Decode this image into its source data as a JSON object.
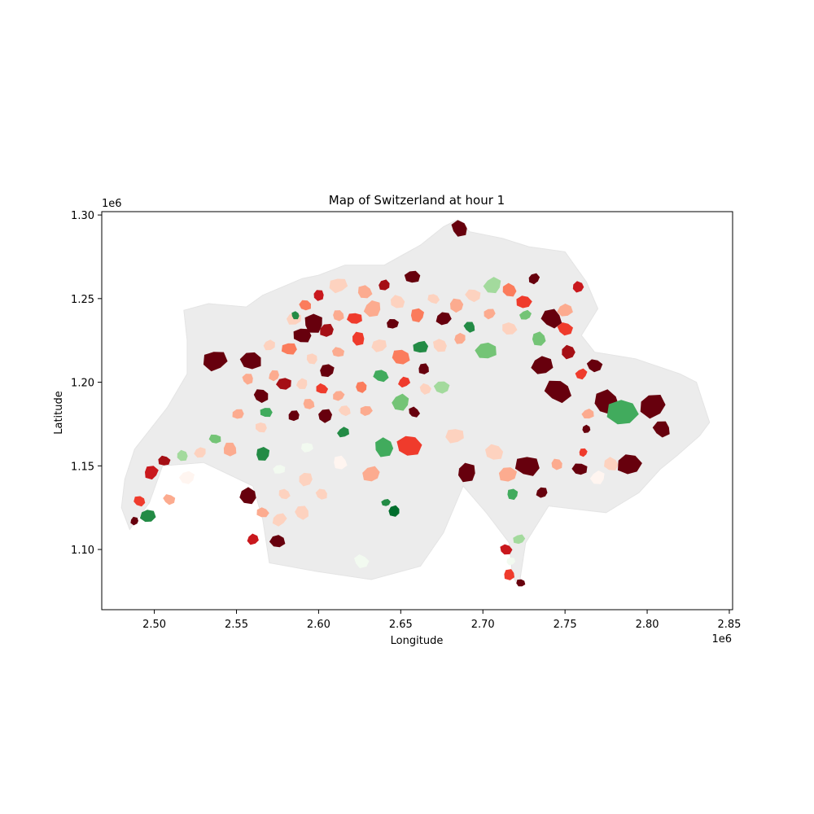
{
  "chart_data": {
    "type": "map",
    "title": "Map of Switzerland at hour 1",
    "xlabel": "Longitude",
    "ylabel": "Latitude",
    "x_offset_label": "1e6",
    "y_offset_label": "1e6",
    "xlim": [
      2.468,
      2.852
    ],
    "ylim": [
      1.064,
      1.302
    ],
    "x_ticks": [
      {
        "value": 2.5,
        "label": "2.50"
      },
      {
        "value": 2.55,
        "label": "2.55"
      },
      {
        "value": 2.6,
        "label": "2.60"
      },
      {
        "value": 2.65,
        "label": "2.65"
      },
      {
        "value": 2.7,
        "label": "2.70"
      },
      {
        "value": 2.75,
        "label": "2.75"
      },
      {
        "value": 2.8,
        "label": "2.80"
      },
      {
        "value": 2.85,
        "label": "2.85"
      }
    ],
    "y_ticks": [
      {
        "value": 1.1,
        "label": "1.10"
      },
      {
        "value": 1.15,
        "label": "1.15"
      },
      {
        "value": 1.2,
        "label": "1.20"
      },
      {
        "value": 1.25,
        "label": "1.25"
      },
      {
        "value": 1.3,
        "label": "1.30"
      }
    ],
    "grid": false,
    "colors": {
      "no_data": "#ececec",
      "red_scale": [
        "#fff5f0",
        "#fdd2bf",
        "#fcab8f",
        "#fb7c5c",
        "#ef3b2c",
        "#c9181d",
        "#a50f15",
        "#67000d"
      ],
      "green_scale": [
        "#f2faf0",
        "#a3da9d",
        "#74c476",
        "#41ab5d",
        "#238b45",
        "#006d2c"
      ]
    },
    "outline": [
      [
        2.485,
        1.112
      ],
      [
        2.497,
        1.128
      ],
      [
        2.505,
        1.15
      ],
      [
        2.53,
        1.152
      ],
      [
        2.56,
        1.138
      ],
      [
        2.566,
        1.118
      ],
      [
        2.57,
        1.092
      ],
      [
        2.598,
        1.087
      ],
      [
        2.632,
        1.082
      ],
      [
        2.662,
        1.09
      ],
      [
        2.676,
        1.11
      ],
      [
        2.688,
        1.138
      ],
      [
        2.702,
        1.122
      ],
      [
        2.716,
        1.104
      ],
      [
        2.718,
        1.084
      ],
      [
        2.722,
        1.078
      ],
      [
        2.726,
        1.104
      ],
      [
        2.74,
        1.126
      ],
      [
        2.775,
        1.122
      ],
      [
        2.795,
        1.134
      ],
      [
        2.808,
        1.148
      ],
      [
        2.818,
        1.156
      ],
      [
        2.832,
        1.168
      ],
      [
        2.838,
        1.176
      ],
      [
        2.83,
        1.2
      ],
      [
        2.82,
        1.205
      ],
      [
        2.793,
        1.214
      ],
      [
        2.768,
        1.218
      ],
      [
        2.76,
        1.228
      ],
      [
        2.77,
        1.244
      ],
      [
        2.763,
        1.26
      ],
      [
        2.75,
        1.278
      ],
      [
        2.728,
        1.281
      ],
      [
        2.712,
        1.286
      ],
      [
        2.692,
        1.29
      ],
      [
        2.684,
        1.297
      ],
      [
        2.676,
        1.293
      ],
      [
        2.662,
        1.282
      ],
      [
        2.64,
        1.27
      ],
      [
        2.616,
        1.27
      ],
      [
        2.6,
        1.264
      ],
      [
        2.59,
        1.262
      ],
      [
        2.566,
        1.252
      ],
      [
        2.556,
        1.245
      ],
      [
        2.533,
        1.247
      ],
      [
        2.518,
        1.243
      ],
      [
        2.52,
        1.225
      ],
      [
        2.52,
        1.205
      ],
      [
        2.508,
        1.185
      ],
      [
        2.488,
        1.16
      ],
      [
        2.482,
        1.142
      ],
      [
        2.48,
        1.125
      ]
    ],
    "regions": [
      {
        "x": 2.686,
        "y": 1.292,
        "r": 0.006,
        "value": 8
      },
      {
        "x": 2.657,
        "y": 1.263,
        "r": 0.005,
        "value": 8
      },
      {
        "x": 2.64,
        "y": 1.258,
        "r": 0.004,
        "value": 7
      },
      {
        "x": 2.628,
        "y": 1.254,
        "r": 0.005,
        "value": 3
      },
      {
        "x": 2.612,
        "y": 1.258,
        "r": 0.006,
        "value": 2
      },
      {
        "x": 2.6,
        "y": 1.252,
        "r": 0.004,
        "value": 6
      },
      {
        "x": 2.592,
        "y": 1.246,
        "r": 0.004,
        "value": 4
      },
      {
        "x": 2.585,
        "y": 1.238,
        "r": 0.005,
        "value": 2
      },
      {
        "x": 2.597,
        "y": 1.235,
        "r": 0.007,
        "value": 8
      },
      {
        "x": 2.59,
        "y": 1.228,
        "r": 0.006,
        "value": 8
      },
      {
        "x": 2.605,
        "y": 1.231,
        "r": 0.005,
        "value": 7
      },
      {
        "x": 2.612,
        "y": 1.24,
        "r": 0.004,
        "value": 3
      },
      {
        "x": 2.622,
        "y": 1.238,
        "r": 0.005,
        "value": 5
      },
      {
        "x": 2.633,
        "y": 1.244,
        "r": 0.006,
        "value": 3
      },
      {
        "x": 2.648,
        "y": 1.248,
        "r": 0.005,
        "value": 2
      },
      {
        "x": 2.645,
        "y": 1.235,
        "r": 0.004,
        "value": 8
      },
      {
        "x": 2.66,
        "y": 1.24,
        "r": 0.005,
        "value": 4
      },
      {
        "x": 2.67,
        "y": 1.25,
        "r": 0.004,
        "value": 2
      },
      {
        "x": 2.676,
        "y": 1.238,
        "r": 0.005,
        "value": 8
      },
      {
        "x": 2.684,
        "y": 1.246,
        "r": 0.005,
        "value": 3
      },
      {
        "x": 2.694,
        "y": 1.252,
        "r": 0.005,
        "value": 2
      },
      {
        "x": 2.706,
        "y": 1.258,
        "r": 0.006,
        "value": -2
      },
      {
        "x": 2.716,
        "y": 1.255,
        "r": 0.005,
        "value": 4
      },
      {
        "x": 2.725,
        "y": 1.248,
        "r": 0.005,
        "value": 5
      },
      {
        "x": 2.731,
        "y": 1.262,
        "r": 0.004,
        "value": 8
      },
      {
        "x": 2.742,
        "y": 1.238,
        "r": 0.007,
        "value": 8
      },
      {
        "x": 2.75,
        "y": 1.243,
        "r": 0.005,
        "value": 3
      },
      {
        "x": 2.758,
        "y": 1.257,
        "r": 0.004,
        "value": 6
      },
      {
        "x": 2.75,
        "y": 1.232,
        "r": 0.005,
        "value": 5
      },
      {
        "x": 2.726,
        "y": 1.24,
        "r": 0.004,
        "value": -3
      },
      {
        "x": 2.734,
        "y": 1.226,
        "r": 0.005,
        "value": -3
      },
      {
        "x": 2.716,
        "y": 1.232,
        "r": 0.005,
        "value": 2
      },
      {
        "x": 2.704,
        "y": 1.241,
        "r": 0.004,
        "value": 3
      },
      {
        "x": 2.692,
        "y": 1.233,
        "r": 0.004,
        "value": -5
      },
      {
        "x": 2.702,
        "y": 1.219,
        "r": 0.007,
        "value": -3
      },
      {
        "x": 2.686,
        "y": 1.226,
        "r": 0.004,
        "value": 3
      },
      {
        "x": 2.674,
        "y": 1.222,
        "r": 0.005,
        "value": 2
      },
      {
        "x": 2.662,
        "y": 1.221,
        "r": 0.005,
        "value": -5
      },
      {
        "x": 2.664,
        "y": 1.208,
        "r": 0.004,
        "value": 8
      },
      {
        "x": 2.65,
        "y": 1.215,
        "r": 0.006,
        "value": 4
      },
      {
        "x": 2.637,
        "y": 1.222,
        "r": 0.005,
        "value": 2
      },
      {
        "x": 2.624,
        "y": 1.226,
        "r": 0.005,
        "value": 5
      },
      {
        "x": 2.612,
        "y": 1.218,
        "r": 0.004,
        "value": 3
      },
      {
        "x": 2.605,
        "y": 1.207,
        "r": 0.005,
        "value": 8
      },
      {
        "x": 2.596,
        "y": 1.214,
        "r": 0.004,
        "value": 2
      },
      {
        "x": 2.582,
        "y": 1.22,
        "r": 0.005,
        "value": 4
      },
      {
        "x": 2.573,
        "y": 1.204,
        "r": 0.004,
        "value": 3
      },
      {
        "x": 2.565,
        "y": 1.192,
        "r": 0.005,
        "value": 8
      },
      {
        "x": 2.579,
        "y": 1.199,
        "r": 0.005,
        "value": 7
      },
      {
        "x": 2.59,
        "y": 1.199,
        "r": 0.004,
        "value": 2
      },
      {
        "x": 2.602,
        "y": 1.196,
        "r": 0.004,
        "value": 5
      },
      {
        "x": 2.612,
        "y": 1.192,
        "r": 0.004,
        "value": 3
      },
      {
        "x": 2.626,
        "y": 1.197,
        "r": 0.004,
        "value": 4
      },
      {
        "x": 2.638,
        "y": 1.204,
        "r": 0.005,
        "value": -4
      },
      {
        "x": 2.652,
        "y": 1.2,
        "r": 0.004,
        "value": 5
      },
      {
        "x": 2.665,
        "y": 1.196,
        "r": 0.004,
        "value": 2
      },
      {
        "x": 2.675,
        "y": 1.197,
        "r": 0.005,
        "value": -2
      },
      {
        "x": 2.65,
        "y": 1.188,
        "r": 0.006,
        "value": -3
      },
      {
        "x": 2.658,
        "y": 1.182,
        "r": 0.004,
        "value": 8
      },
      {
        "x": 2.629,
        "y": 1.183,
        "r": 0.004,
        "value": 3
      },
      {
        "x": 2.604,
        "y": 1.18,
        "r": 0.005,
        "value": 8
      },
      {
        "x": 2.616,
        "y": 1.183,
        "r": 0.004,
        "value": 2
      },
      {
        "x": 2.615,
        "y": 1.17,
        "r": 0.004,
        "value": -5
      },
      {
        "x": 2.64,
        "y": 1.161,
        "r": 0.007,
        "value": -4
      },
      {
        "x": 2.655,
        "y": 1.162,
        "r": 0.008,
        "value": 5
      },
      {
        "x": 2.632,
        "y": 1.145,
        "r": 0.006,
        "value": 3
      },
      {
        "x": 2.613,
        "y": 1.152,
        "r": 0.005,
        "value": 1
      },
      {
        "x": 2.593,
        "y": 1.161,
        "r": 0.004,
        "value": -1
      },
      {
        "x": 2.592,
        "y": 1.142,
        "r": 0.005,
        "value": 2
      },
      {
        "x": 2.602,
        "y": 1.133,
        "r": 0.004,
        "value": 2
      },
      {
        "x": 2.576,
        "y": 1.148,
        "r": 0.004,
        "value": -1
      },
      {
        "x": 2.566,
        "y": 1.157,
        "r": 0.005,
        "value": -5
      },
      {
        "x": 2.565,
        "y": 1.173,
        "r": 0.004,
        "value": 2
      },
      {
        "x": 2.551,
        "y": 1.181,
        "r": 0.004,
        "value": 3
      },
      {
        "x": 2.546,
        "y": 1.16,
        "r": 0.005,
        "value": 3
      },
      {
        "x": 2.537,
        "y": 1.166,
        "r": 0.004,
        "value": -3
      },
      {
        "x": 2.528,
        "y": 1.158,
        "r": 0.004,
        "value": 2
      },
      {
        "x": 2.517,
        "y": 1.156,
        "r": 0.004,
        "value": -2
      },
      {
        "x": 2.506,
        "y": 1.153,
        "r": 0.004,
        "value": 7
      },
      {
        "x": 2.498,
        "y": 1.146,
        "r": 0.005,
        "value": 6
      },
      {
        "x": 2.491,
        "y": 1.129,
        "r": 0.004,
        "value": 5
      },
      {
        "x": 2.496,
        "y": 1.12,
        "r": 0.005,
        "value": -5
      },
      {
        "x": 2.488,
        "y": 1.117,
        "r": 0.003,
        "value": 8
      },
      {
        "x": 2.509,
        "y": 1.13,
        "r": 0.004,
        "value": 3
      },
      {
        "x": 2.52,
        "y": 1.143,
        "r": 0.005,
        "value": 1
      },
      {
        "x": 2.557,
        "y": 1.132,
        "r": 0.006,
        "value": 8
      },
      {
        "x": 2.566,
        "y": 1.122,
        "r": 0.004,
        "value": 3
      },
      {
        "x": 2.576,
        "y": 1.118,
        "r": 0.005,
        "value": 2
      },
      {
        "x": 2.59,
        "y": 1.122,
        "r": 0.005,
        "value": 2
      },
      {
        "x": 2.575,
        "y": 1.105,
        "r": 0.005,
        "value": 8
      },
      {
        "x": 2.56,
        "y": 1.106,
        "r": 0.004,
        "value": 6
      },
      {
        "x": 2.626,
        "y": 1.093,
        "r": 0.005,
        "value": -1
      },
      {
        "x": 2.641,
        "y": 1.128,
        "r": 0.003,
        "value": -5
      },
      {
        "x": 2.646,
        "y": 1.123,
        "r": 0.004,
        "value": -6
      },
      {
        "x": 2.579,
        "y": 1.133,
        "r": 0.004,
        "value": 2
      },
      {
        "x": 2.537,
        "y": 1.213,
        "r": 0.008,
        "value": 8
      },
      {
        "x": 2.557,
        "y": 1.202,
        "r": 0.004,
        "value": 3
      },
      {
        "x": 2.559,
        "y": 1.213,
        "r": 0.007,
        "value": 8
      },
      {
        "x": 2.57,
        "y": 1.222,
        "r": 0.004,
        "value": 2
      },
      {
        "x": 2.586,
        "y": 1.24,
        "r": 0.003,
        "value": -5
      },
      {
        "x": 2.568,
        "y": 1.182,
        "r": 0.004,
        "value": -4
      },
      {
        "x": 2.585,
        "y": 1.18,
        "r": 0.004,
        "value": 8
      },
      {
        "x": 2.594,
        "y": 1.187,
        "r": 0.004,
        "value": 3
      },
      {
        "x": 2.683,
        "y": 1.168,
        "r": 0.006,
        "value": 2
      },
      {
        "x": 2.69,
        "y": 1.146,
        "r": 0.007,
        "value": 8
      },
      {
        "x": 2.707,
        "y": 1.158,
        "r": 0.006,
        "value": 2
      },
      {
        "x": 2.715,
        "y": 1.145,
        "r": 0.006,
        "value": 3
      },
      {
        "x": 2.718,
        "y": 1.133,
        "r": 0.004,
        "value": -4
      },
      {
        "x": 2.727,
        "y": 1.15,
        "r": 0.008,
        "value": 8
      },
      {
        "x": 2.736,
        "y": 1.134,
        "r": 0.004,
        "value": 8
      },
      {
        "x": 2.745,
        "y": 1.151,
        "r": 0.004,
        "value": 3
      },
      {
        "x": 2.759,
        "y": 1.148,
        "r": 0.005,
        "value": 8
      },
      {
        "x": 2.77,
        "y": 1.143,
        "r": 0.005,
        "value": 1
      },
      {
        "x": 2.778,
        "y": 1.151,
        "r": 0.005,
        "value": 2
      },
      {
        "x": 2.789,
        "y": 1.151,
        "r": 0.008,
        "value": 8
      },
      {
        "x": 2.761,
        "y": 1.158,
        "r": 0.003,
        "value": 5
      },
      {
        "x": 2.746,
        "y": 1.195,
        "r": 0.009,
        "value": 8
      },
      {
        "x": 2.736,
        "y": 1.21,
        "r": 0.007,
        "value": 8
      },
      {
        "x": 2.752,
        "y": 1.218,
        "r": 0.005,
        "value": 7
      },
      {
        "x": 2.768,
        "y": 1.21,
        "r": 0.005,
        "value": 8
      },
      {
        "x": 2.76,
        "y": 1.205,
        "r": 0.004,
        "value": 5
      },
      {
        "x": 2.775,
        "y": 1.188,
        "r": 0.009,
        "value": 8
      },
      {
        "x": 2.785,
        "y": 1.182,
        "r": 0.01,
        "value": -4
      },
      {
        "x": 2.803,
        "y": 1.186,
        "r": 0.009,
        "value": 8
      },
      {
        "x": 2.809,
        "y": 1.172,
        "r": 0.006,
        "value": 8
      },
      {
        "x": 2.764,
        "y": 1.181,
        "r": 0.004,
        "value": 3
      },
      {
        "x": 2.763,
        "y": 1.172,
        "r": 0.003,
        "value": 8
      },
      {
        "x": 2.714,
        "y": 1.1,
        "r": 0.004,
        "value": 6
      },
      {
        "x": 2.722,
        "y": 1.106,
        "r": 0.004,
        "value": -2
      },
      {
        "x": 2.716,
        "y": 1.085,
        "r": 0.004,
        "value": 5
      },
      {
        "x": 2.723,
        "y": 1.08,
        "r": 0.003,
        "value": 8
      },
      {
        "x": 2.717,
        "y": 1.093,
        "r": 0.003,
        "value": -1
      }
    ]
  }
}
